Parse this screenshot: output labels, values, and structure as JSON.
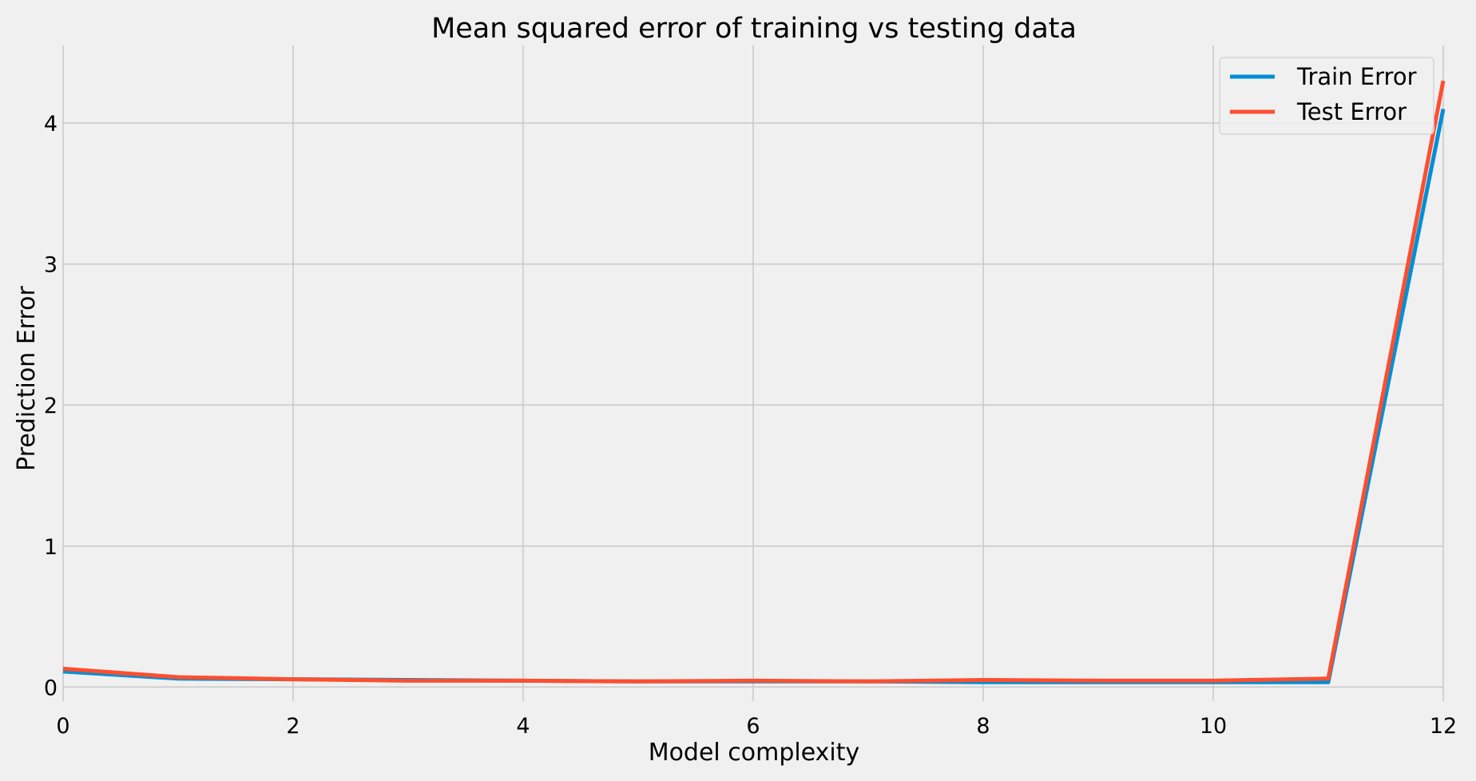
{
  "chart_data": {
    "type": "line",
    "title": "Mean squared error of training vs testing data",
    "xlabel": "Model complexity",
    "ylabel": "Prediction Error",
    "xlim": [
      0,
      12
    ],
    "ylim": [
      -0.1,
      4.55
    ],
    "x_ticks": [
      0,
      2,
      4,
      6,
      8,
      10,
      12
    ],
    "y_ticks": [
      0,
      1,
      2,
      3,
      4
    ],
    "x_tick_labels": [
      "0",
      "2",
      "4",
      "6",
      "8",
      "10",
      "12"
    ],
    "y_tick_labels": [
      "0",
      "1",
      "2",
      "3",
      "4"
    ],
    "grid": true,
    "legend_position": "top-right",
    "x": [
      0,
      1,
      2,
      3,
      4,
      5,
      6,
      7,
      8,
      9,
      10,
      11,
      12
    ],
    "series": [
      {
        "name": "Train Error",
        "color": "#008fd5",
        "values": [
          0.11,
          0.06,
          0.055,
          0.05,
          0.045,
          0.04,
          0.04,
          0.04,
          0.035,
          0.035,
          0.035,
          0.035,
          4.1
        ]
      },
      {
        "name": "Test Error",
        "color": "#fc4f30",
        "values": [
          0.13,
          0.07,
          0.055,
          0.045,
          0.045,
          0.04,
          0.045,
          0.04,
          0.05,
          0.045,
          0.045,
          0.06,
          4.3
        ]
      }
    ]
  }
}
